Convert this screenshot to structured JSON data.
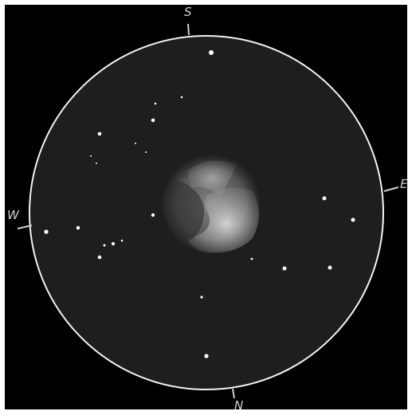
{
  "sketch": {
    "background_color": "#000000",
    "field_color": "#1e1e1e",
    "field_border_color": "#f2f2f2",
    "star_color": "#ffffff",
    "nebula_color": "#d9d9d9",
    "directions": {
      "north": "N",
      "south": "S",
      "east": "E",
      "west": "W"
    }
  }
}
